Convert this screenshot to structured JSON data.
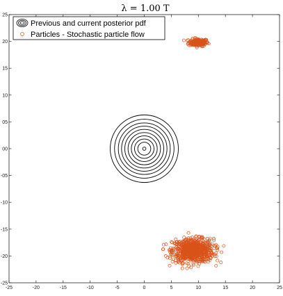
{
  "chart_data": {
    "type": "scatter",
    "title": "λ = 1.00 T",
    "xlabel": "",
    "ylabel": "",
    "xlim": [
      -25,
      25
    ],
    "ylim": [
      -25,
      25
    ],
    "x_ticks": [
      -25,
      -20,
      -15,
      -10,
      -5,
      0,
      5,
      10,
      15,
      20,
      25
    ],
    "x_tick_labels": [
      "-25",
      "-20",
      "-15",
      "-10",
      "-5",
      "0",
      "5",
      "10",
      "15",
      "20",
      "25"
    ],
    "y_ticks": [
      -25,
      -20,
      -15,
      -10,
      -5,
      0,
      5,
      10,
      15,
      20,
      25
    ],
    "y_tick_labels": [
      "-25",
      "-20",
      "-15",
      "-10",
      "-05",
      "00",
      "05",
      "10",
      "15",
      "20",
      "25"
    ],
    "grid": false,
    "legend_position": "top-left",
    "series": [
      {
        "name": "Previous and current posterior pdf",
        "kind": "contour",
        "color": "#000000",
        "center": [
          0,
          0
        ],
        "radii": [
          0.3,
          1.2,
          1.8,
          2.4,
          3.0,
          3.6,
          4.2,
          4.8,
          5.5,
          6.3
        ]
      },
      {
        "name": "Particles - Stochastic particle flow",
        "kind": "scatter",
        "marker": "open-circle",
        "color": "#d95319",
        "clusters": [
          {
            "center": [
              10,
              19.8
            ],
            "spread": [
              0.9,
              0.35
            ],
            "count": 180
          },
          {
            "center": [
              9.0,
              -19.0
            ],
            "spread": [
              1.9,
              1.1
            ],
            "count": 750
          }
        ]
      }
    ]
  }
}
